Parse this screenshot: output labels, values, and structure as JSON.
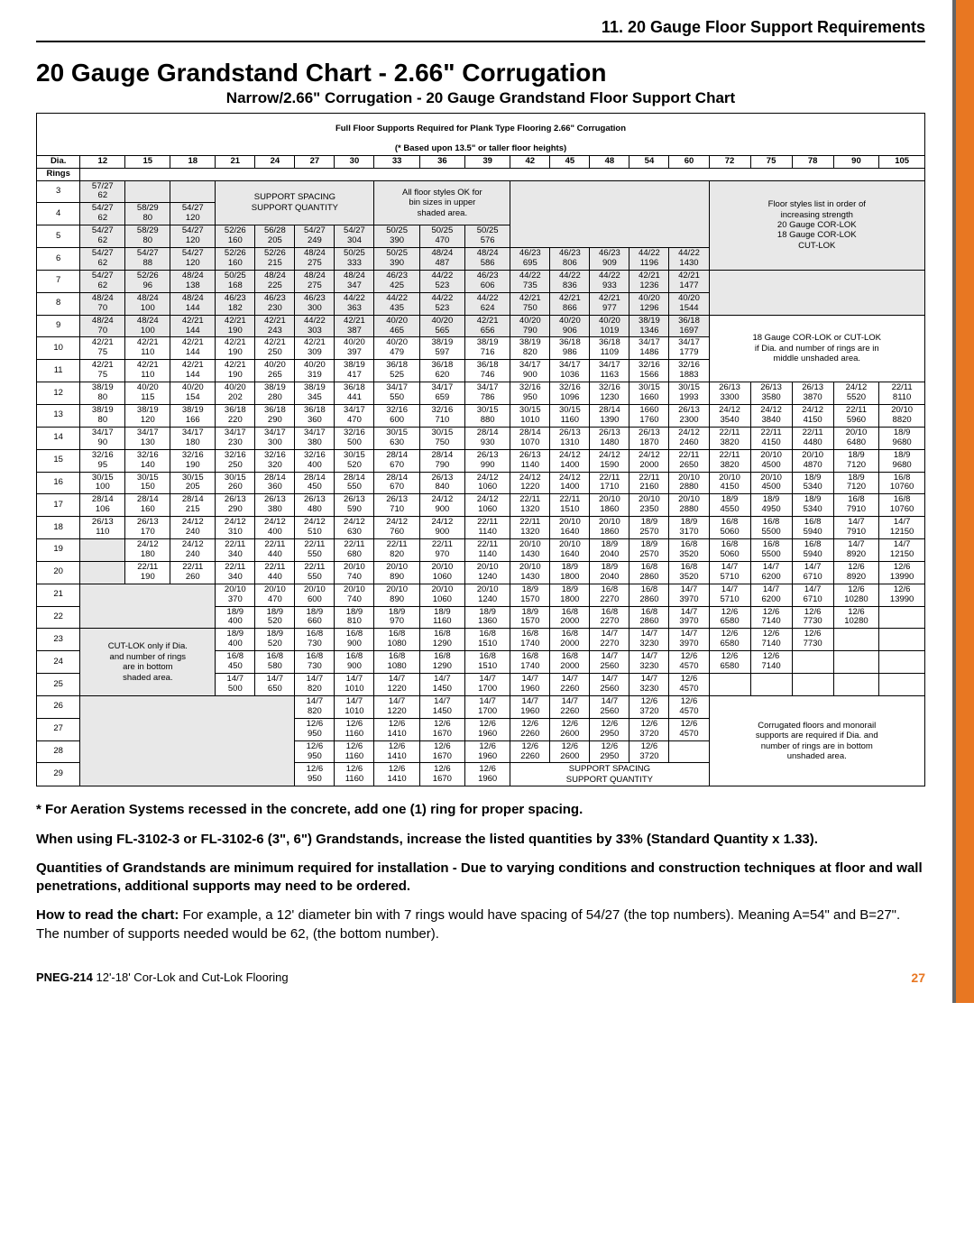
{
  "header": {
    "section": "11. 20 Gauge Floor Support Requirements",
    "title": "20 Gauge Grandstand Chart - 2.66\" Corrugation",
    "subtitle": "Narrow/2.66\" Corrugation - 20 Gauge Grandstand Floor Support Chart",
    "table_header1": "Full Floor Supports Required for Plank Type Flooring 2.66\" Corrugation",
    "table_header2": "(* Based upon 13.5\" or taller floor heights)"
  },
  "columns": [
    "Dia.",
    "12",
    "15",
    "18",
    "21",
    "24",
    "27",
    "30",
    "33",
    "36",
    "39",
    "42",
    "45",
    "48",
    "54",
    "60",
    "72",
    "75",
    "78",
    "90",
    "105"
  ],
  "rings_label": "Rings",
  "note_blocks": {
    "support_spacing": "SUPPORT SPACING\nSUPPORT QUANTITY",
    "all_floor_styles": "All floor styles OK for\nbin sizes in upper\nshaded area.",
    "floor_styles_list": "Floor styles list in order of\nincreasing strength\n20 Gauge COR-LOK\n18 Gauge COR-LOK\nCUT-LOK",
    "cutlok_only": "CUT-LOK only if Dia.\nand number of rings\nare in bottom\nshaded area.",
    "gauge18": "18 Gauge COR-LOK or CUT-LOK\nif Dia. and number of rings are in\nmiddle unshaded area.",
    "corrugated": "Corrugated floors and monorail\nsupports are required if Dia. and\nnumber of rings are in bottom\nunshaded area.",
    "support_spacing2": "SUPPORT SPACING\nSUPPORT QUANTITY"
  },
  "rows": [
    {
      "ring": "3",
      "cells": [
        "57/27\n62",
        "",
        "",
        "",
        "",
        "",
        "",
        "",
        "",
        "",
        "",
        "",
        "",
        "",
        "",
        "",
        "",
        "",
        "",
        ""
      ]
    },
    {
      "ring": "4",
      "cells": [
        "54/27\n62",
        "58/29\n80",
        "54/27\n120",
        "",
        "",
        "",
        "",
        "",
        "",
        "",
        "",
        "",
        "",
        "",
        "",
        "",
        "",
        "",
        "",
        ""
      ]
    },
    {
      "ring": "5",
      "cells": [
        "54/27\n62",
        "58/29\n80",
        "54/27\n120",
        "52/26\n160",
        "56/28\n205",
        "54/27\n249",
        "54/27\n304",
        "50/25\n390",
        "50/25\n470",
        "50/25\n576",
        "",
        "",
        "",
        "",
        "",
        "",
        "",
        "",
        "",
        ""
      ]
    },
    {
      "ring": "6",
      "cells": [
        "54/27\n62",
        "54/27\n88",
        "54/27\n120",
        "52/26\n160",
        "52/26\n215",
        "48/24\n275",
        "50/25\n333",
        "50/25\n390",
        "48/24\n487",
        "48/24\n586",
        "46/23\n695",
        "46/23\n806",
        "46/23\n909",
        "44/22\n1196",
        "44/22\n1430",
        "",
        "",
        "",
        "",
        ""
      ]
    },
    {
      "ring": "7",
      "cells": [
        "54/27\n62",
        "52/26\n96",
        "48/24\n138",
        "50/25\n168",
        "48/24\n225",
        "48/24\n275",
        "48/24\n347",
        "46/23\n425",
        "44/22\n523",
        "46/23\n606",
        "44/22\n735",
        "44/22\n836",
        "44/22\n933",
        "42/21\n1236",
        "42/21\n1477",
        "",
        "",
        "",
        "",
        ""
      ]
    },
    {
      "ring": "8",
      "cells": [
        "48/24\n70",
        "48/24\n100",
        "48/24\n144",
        "46/23\n182",
        "46/23\n230",
        "46/23\n300",
        "44/22\n363",
        "44/22\n435",
        "44/22\n523",
        "44/22\n624",
        "42/21\n750",
        "42/21\n866",
        "42/21\n977",
        "40/20\n1296",
        "40/20\n1544",
        "",
        "",
        "",
        "",
        ""
      ]
    },
    {
      "ring": "9",
      "cells": [
        "48/24\n70",
        "48/24\n100",
        "42/21\n144",
        "42/21\n190",
        "42/21\n243",
        "44/22\n303",
        "42/21\n387",
        "40/20\n465",
        "40/20\n565",
        "42/21\n656",
        "40/20\n790",
        "40/20\n906",
        "40/20\n1019",
        "38/19\n1346",
        "36/18\n1697",
        "",
        "",
        "",
        "",
        ""
      ]
    },
    {
      "ring": "10",
      "cells": [
        "42/21\n75",
        "42/21\n110",
        "42/21\n144",
        "42/21\n190",
        "42/21\n250",
        "42/21\n309",
        "40/20\n397",
        "40/20\n479",
        "38/19\n597",
        "38/19\n716",
        "38/19\n820",
        "36/18\n986",
        "36/18\n1109",
        "34/17\n1486",
        "34/17\n1779",
        "",
        "",
        "",
        "",
        ""
      ]
    },
    {
      "ring": "11",
      "cells": [
        "42/21\n75",
        "42/21\n110",
        "42/21\n144",
        "42/21\n190",
        "40/20\n265",
        "40/20\n319",
        "38/19\n417",
        "36/18\n525",
        "36/18\n620",
        "36/18\n746",
        "34/17\n900",
        "34/17\n1036",
        "34/17\n1163",
        "32/16\n1566",
        "32/16\n1883",
        "",
        "",
        "",
        "",
        ""
      ]
    },
    {
      "ring": "12",
      "cells": [
        "38/19\n80",
        "40/20\n115",
        "40/20\n154",
        "40/20\n202",
        "38/19\n280",
        "38/19\n345",
        "36/18\n441",
        "34/17\n550",
        "34/17\n659",
        "34/17\n786",
        "32/16\n950",
        "32/16\n1096",
        "32/16\n1230",
        "30/15\n1660",
        "30/15\n1993",
        "26/13\n3300",
        "26/13\n3580",
        "26/13\n3870",
        "24/12\n5520",
        "22/11\n8110"
      ]
    },
    {
      "ring": "13",
      "cells": [
        "38/19\n80",
        "38/19\n120",
        "38/19\n166",
        "36/18\n220",
        "36/18\n290",
        "36/18\n360",
        "34/17\n470",
        "32/16\n600",
        "32/16\n710",
        "30/15\n880",
        "30/15\n1010",
        "30/15\n1160",
        "28/14\n1390",
        "1660\n1760",
        "26/13\n2300",
        "24/12\n3540",
        "24/12\n3840",
        "24/12\n4150",
        "22/11\n5960",
        "20/10\n8820"
      ]
    },
    {
      "ring": "14",
      "cells": [
        "34/17\n90",
        "34/17\n130",
        "34/17\n180",
        "34/17\n230",
        "34/17\n300",
        "34/17\n380",
        "32/16\n500",
        "30/15\n630",
        "30/15\n750",
        "28/14\n930",
        "28/14\n1070",
        "26/13\n1310",
        "26/13\n1480",
        "26/13\n1870",
        "24/12\n2460",
        "22/11\n3820",
        "22/11\n4150",
        "22/11\n4480",
        "20/10\n6480",
        "18/9\n9680"
      ]
    },
    {
      "ring": "15",
      "cells": [
        "32/16\n95",
        "32/16\n140",
        "32/16\n190",
        "32/16\n250",
        "32/16\n320",
        "32/16\n400",
        "30/15\n520",
        "28/14\n670",
        "28/14\n790",
        "26/13\n990",
        "26/13\n1140",
        "24/12\n1400",
        "24/12\n1590",
        "24/12\n2000",
        "22/11\n2650",
        "22/11\n3820",
        "20/10\n4500",
        "20/10\n4870",
        "18/9\n7120",
        "18/9\n9680"
      ]
    },
    {
      "ring": "16",
      "cells": [
        "30/15\n100",
        "30/15\n150",
        "30/15\n205",
        "30/15\n260",
        "28/14\n360",
        "28/14\n450",
        "28/14\n550",
        "28/14\n670",
        "26/13\n840",
        "24/12\n1060",
        "24/12\n1220",
        "24/12\n1400",
        "22/11\n1710",
        "22/11\n2160",
        "20/10\n2880",
        "20/10\n4150",
        "20/10\n4500",
        "18/9\n5340",
        "18/9\n7120",
        "16/8\n10760"
      ]
    },
    {
      "ring": "17",
      "cells": [
        "28/14\n106",
        "28/14\n160",
        "28/14\n215",
        "26/13\n290",
        "26/13\n380",
        "26/13\n480",
        "26/13\n590",
        "26/13\n710",
        "24/12\n900",
        "24/12\n1060",
        "22/11\n1320",
        "22/11\n1510",
        "20/10\n1860",
        "20/10\n2350",
        "20/10\n2880",
        "18/9\n4550",
        "18/9\n4950",
        "18/9\n5340",
        "16/8\n7910",
        "16/8\n10760"
      ]
    },
    {
      "ring": "18",
      "cells": [
        "26/13\n110",
        "26/13\n170",
        "24/12\n240",
        "24/12\n310",
        "24/12\n400",
        "24/12\n510",
        "24/12\n630",
        "24/12\n760",
        "24/12\n900",
        "22/11\n1140",
        "22/11\n1320",
        "20/10\n1640",
        "20/10\n1860",
        "18/9\n2570",
        "18/9\n3170",
        "16/8\n5060",
        "16/8\n5500",
        "16/8\n5940",
        "14/7\n7910",
        "14/7\n12150"
      ]
    },
    {
      "ring": "19",
      "cells": [
        "",
        "24/12\n180",
        "24/12\n240",
        "22/11\n340",
        "22/11\n440",
        "22/11\n550",
        "22/11\n680",
        "22/11\n820",
        "22/11\n970",
        "22/11\n1140",
        "20/10\n1430",
        "20/10\n1640",
        "18/9\n2040",
        "18/9\n2570",
        "16/8\n3520",
        "16/8\n5060",
        "16/8\n5500",
        "16/8\n5940",
        "14/7\n8920",
        "14/7\n12150"
      ]
    },
    {
      "ring": "20",
      "cells": [
        "",
        "22/11\n190",
        "22/11\n260",
        "22/11\n340",
        "22/11\n440",
        "22/11\n550",
        "20/10\n740",
        "20/10\n890",
        "20/10\n1060",
        "20/10\n1240",
        "20/10\n1430",
        "18/9\n1800",
        "18/9\n2040",
        "16/8\n2860",
        "16/8\n3520",
        "14/7\n5710",
        "14/7\n6200",
        "14/7\n6710",
        "12/6\n8920",
        "12/6\n13990"
      ]
    },
    {
      "ring": "21",
      "cells": [
        "",
        "",
        "",
        "20/10\n370",
        "20/10\n470",
        "20/10\n600",
        "20/10\n740",
        "20/10\n890",
        "20/10\n1060",
        "20/10\n1240",
        "18/9\n1570",
        "18/9\n1800",
        "16/8\n2270",
        "16/8\n2860",
        "14/7\n3970",
        "14/7\n5710",
        "14/7\n6200",
        "14/7\n6710",
        "12/6\n10280",
        "12/6\n13990"
      ]
    },
    {
      "ring": "22",
      "cells": [
        "",
        "",
        "",
        "18/9\n400",
        "18/9\n520",
        "18/9\n660",
        "18/9\n810",
        "18/9\n970",
        "18/9\n1160",
        "18/9\n1360",
        "18/9\n1570",
        "16/8\n2000",
        "16/8\n2270",
        "16/8\n2860",
        "14/7\n3970",
        "12/6\n6580",
        "12/6\n7140",
        "12/6\n7730",
        "12/6\n10280",
        ""
      ]
    },
    {
      "ring": "23",
      "cells": [
        "",
        "",
        "",
        "18/9\n400",
        "18/9\n520",
        "16/8\n730",
        "16/8\n900",
        "16/8\n1080",
        "16/8\n1290",
        "16/8\n1510",
        "16/8\n1740",
        "16/8\n2000",
        "14/7\n2270",
        "14/7\n3230",
        "14/7\n3970",
        "12/6\n6580",
        "12/6\n7140",
        "12/6\n7730",
        "",
        ""
      ]
    },
    {
      "ring": "24",
      "cells": [
        "",
        "",
        "",
        "16/8\n450",
        "16/8\n580",
        "16/8\n730",
        "16/8\n900",
        "16/8\n1080",
        "16/8\n1290",
        "16/8\n1510",
        "16/8\n1740",
        "16/8\n2000",
        "14/7\n2560",
        "14/7\n3230",
        "12/6\n4570",
        "12/6\n6580",
        "12/6\n7140",
        "",
        "",
        ""
      ]
    },
    {
      "ring": "25",
      "cells": [
        "",
        "",
        "",
        "14/7\n500",
        "14/7\n650",
        "14/7\n820",
        "14/7\n1010",
        "14/7\n1220",
        "14/7\n1450",
        "14/7\n1700",
        "14/7\n1960",
        "14/7\n2260",
        "14/7\n2560",
        "14/7\n3230",
        "12/6\n4570",
        "",
        "",
        "",
        "",
        ""
      ]
    },
    {
      "ring": "26",
      "cells": [
        "",
        "",
        "",
        "",
        "",
        "14/7\n820",
        "14/7\n1010",
        "14/7\n1220",
        "14/7\n1450",
        "14/7\n1700",
        "14/7\n1960",
        "14/7\n2260",
        "14/7\n2560",
        "12/6\n3720",
        "12/6\n4570",
        "",
        "",
        "",
        "",
        ""
      ]
    },
    {
      "ring": "27",
      "cells": [
        "",
        "",
        "",
        "",
        "",
        "12/6\n950",
        "12/6\n1160",
        "12/6\n1410",
        "12/6\n1670",
        "12/6\n1960",
        "12/6\n2260",
        "12/6\n2600",
        "12/6\n2950",
        "12/6\n3720",
        "12/6\n4570",
        "",
        "",
        "",
        "",
        ""
      ]
    },
    {
      "ring": "28",
      "cells": [
        "",
        "",
        "",
        "",
        "",
        "12/6\n950",
        "12/6\n1160",
        "12/6\n1410",
        "12/6\n1670",
        "12/6\n1960",
        "12/6\n2260",
        "12/6\n2600",
        "12/6\n2950",
        "12/6\n3720",
        "",
        "",
        "",
        "",
        "",
        ""
      ]
    },
    {
      "ring": "29",
      "cells": [
        "",
        "",
        "",
        "",
        "",
        "12/6\n950",
        "12/6\n1160",
        "12/6\n1410",
        "12/6\n1670",
        "12/6\n1960",
        "",
        "",
        "",
        "",
        "",
        "",
        "",
        "",
        "",
        ""
      ]
    }
  ],
  "notes": {
    "n1": "* For Aeration Systems recessed in the concrete, add one (1) ring for proper spacing.",
    "n2": "When using FL-3102-3 or FL-3102-6 (3\", 6\") Grandstands, increase the listed quantities by 33% (Standard Quantity x 1.33).",
    "n3": "Quantities of Grandstands are minimum required for installation - Due to varying conditions and construction techniques at floor and wall penetrations, additional supports may need to be ordered.",
    "n4a": "How to read the chart:",
    "n4b": " For example, a 12' diameter bin with 7 rings would have spacing of 54/27 (the top numbers). Meaning A=54\" and B=27\". The number of supports needed would be 62, (the bottom number)."
  },
  "footer": {
    "doc": "PNEG-214",
    "desc": " 12'-18' Cor-Lok and Cut-Lok Flooring",
    "page": "27"
  },
  "colors": {
    "orange": "#e87722",
    "shade": "#e8e8e8"
  }
}
